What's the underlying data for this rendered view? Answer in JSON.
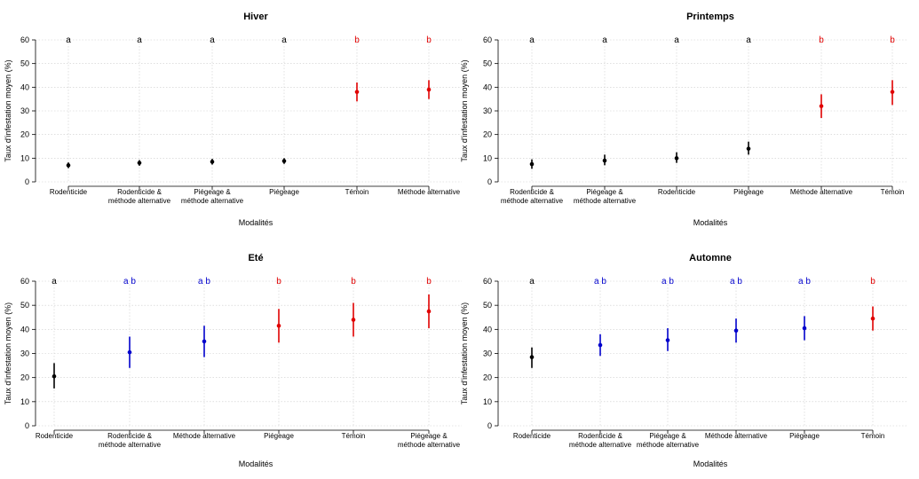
{
  "colors": {
    "groupA": "#000000",
    "groupAB": "#0000CC",
    "groupB": "#E00000",
    "grid": "#CCCCCC"
  },
  "chart_data": [
    {
      "type": "scatter",
      "title": "Hiver",
      "xlabel": "Modalités",
      "ylabel": "Taux d'infestation moyen (%)",
      "ylim": [
        0,
        60
      ],
      "yticks": [
        0,
        10,
        20,
        30,
        40,
        50,
        60
      ],
      "grid": true,
      "errorbars": true,
      "categories": [
        "Rodenticide",
        "Rodenticide &\nméthode alternative",
        "Piégeage &\nméthode alternative",
        "Piégeage",
        "Témoin",
        "Méthode alternative"
      ],
      "values": [
        7,
        8,
        8.5,
        8.8,
        38,
        39
      ],
      "lower": [
        5.8,
        6.8,
        7.3,
        7.6,
        34,
        35
      ],
      "upper": [
        8.2,
        9.2,
        9.7,
        10,
        42,
        43
      ],
      "letters": [
        "a",
        "a",
        "a",
        "a",
        "b",
        "b"
      ],
      "letter_group": [
        "a",
        "a",
        "a",
        "a",
        "b",
        "b"
      ]
    },
    {
      "type": "scatter",
      "title": "Printemps",
      "xlabel": "Modalités",
      "ylabel": "Taux d'infestation moyen (%)",
      "ylim": [
        0,
        60
      ],
      "yticks": [
        0,
        10,
        20,
        30,
        40,
        50,
        60
      ],
      "grid": true,
      "errorbars": true,
      "categories": [
        "Rodenticide &\nméthode alternative",
        "Piégeage &\nméthode alternative",
        "Rodenticide",
        "Piégeage",
        "Méthode alternative",
        "Témoin"
      ],
      "values": [
        7.5,
        9,
        10,
        14,
        32,
        38
      ],
      "lower": [
        5.5,
        7,
        8,
        11.5,
        27,
        32.5
      ],
      "upper": [
        9.5,
        11.5,
        12.5,
        17,
        37,
        43
      ],
      "letters": [
        "a",
        "a",
        "a",
        "a",
        "b",
        "b"
      ],
      "letter_group": [
        "a",
        "a",
        "a",
        "a",
        "b",
        "b"
      ]
    },
    {
      "type": "scatter",
      "title": "Eté",
      "xlabel": "Modalités",
      "ylabel": "Taux d'infestation moyen (%)",
      "ylim": [
        0,
        60
      ],
      "yticks": [
        0,
        10,
        20,
        30,
        40,
        50,
        60
      ],
      "grid": true,
      "errorbars": true,
      "categories": [
        "Rodenticide",
        "Rodenticide &\nméthode alternative",
        "Méthode alternative",
        "Piégeage",
        "Témoin",
        "Piégeage &\nméthode alternative"
      ],
      "values": [
        20.5,
        30.5,
        35,
        41.5,
        44,
        47.5
      ],
      "lower": [
        15.5,
        24,
        28.5,
        34.5,
        37,
        40.5
      ],
      "upper": [
        26,
        37,
        41.5,
        48.5,
        51,
        54.5
      ],
      "letters": [
        "a",
        "a b",
        "a b",
        "b",
        "b",
        "b"
      ],
      "letter_group": [
        "a",
        "ab",
        "ab",
        "b",
        "b",
        "b"
      ]
    },
    {
      "type": "scatter",
      "title": "Automne",
      "xlabel": "Modalités",
      "ylabel": "Taux d'infestation moyen (%)",
      "ylim": [
        0,
        60
      ],
      "yticks": [
        0,
        10,
        20,
        30,
        40,
        50,
        60
      ],
      "grid": true,
      "errorbars": true,
      "categories": [
        "Rodenticide",
        "Rodenticide &\nméthode alternative",
        "Piégeage &\nméthode alternative",
        "Méthode alternative",
        "Piégeage",
        "Témoin"
      ],
      "values": [
        28.5,
        33.5,
        35.5,
        39.5,
        40.5,
        44.5
      ],
      "lower": [
        24,
        29,
        31,
        34.5,
        35.5,
        39.5
      ],
      "upper": [
        32.5,
        38,
        40.5,
        44.5,
        45.5,
        49.5
      ],
      "letters": [
        "a",
        "a b",
        "a b",
        "a b",
        "a b",
        "b"
      ],
      "letter_group": [
        "a",
        "ab",
        "ab",
        "ab",
        "ab",
        "b"
      ]
    }
  ]
}
